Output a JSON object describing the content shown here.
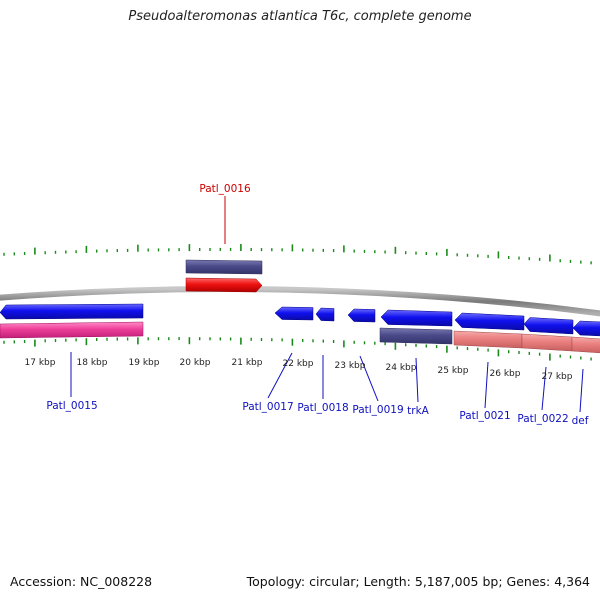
{
  "title": "Pseudoalteromonas atlantica T6c, complete genome",
  "footer": {
    "accession": "Accession: NC_008228",
    "stats": "Topology: circular; Length: 5,187,005 bp; Genes: 4,364"
  },
  "colors": {
    "backbone": "#8a8a8a",
    "tick": "#1a8a1a",
    "gene_blue": "#1010ee",
    "gene_dark": "#4a4a8a",
    "gene_red": "#ee1010",
    "gene_pink": "#ee3f9a",
    "gene_salmon": "#ea7f7f",
    "label_blue": "#1010c0",
    "label_red": "#cc0000"
  },
  "scale_labels": [
    "17 kbp",
    "18 kbp",
    "19 kbp",
    "20 kbp",
    "21 kbp",
    "22 kbp",
    "23 kbp",
    "24 kbp",
    "25 kbp",
    "26 kbp",
    "27 kbp"
  ],
  "gene_labels": [
    "Patl_0016",
    "Patl_0015",
    "Patl_0017",
    "Patl_0018",
    "Patl_0019",
    "trkA",
    "Patl_0021",
    "Patl_0022",
    "def"
  ]
}
